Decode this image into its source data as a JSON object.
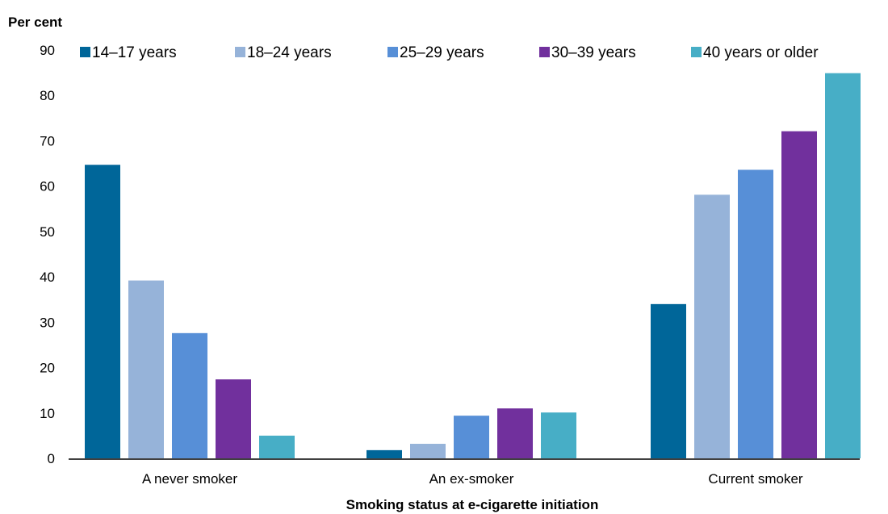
{
  "chart_data": {
    "type": "bar",
    "title": "",
    "ylabel": "Per cent",
    "xlabel": "Smoking status at e-cigarette initiation",
    "ylim": [
      0,
      90
    ],
    "y_ticks": [
      0,
      10,
      20,
      30,
      40,
      50,
      60,
      70,
      80,
      90
    ],
    "grid": false,
    "legend_position": "top",
    "categories": [
      "A never smoker",
      "An ex-smoker",
      "Current smoker"
    ],
    "series": [
      {
        "name": "14–17 years",
        "color": "#006699",
        "values": [
          64.7,
          1.8,
          34.0
        ]
      },
      {
        "name": "18–24 years",
        "color": "#96B3D9",
        "values": [
          39.2,
          3.2,
          58.1
        ]
      },
      {
        "name": "25–29 years",
        "color": "#578FD7",
        "values": [
          27.6,
          9.4,
          63.6
        ]
      },
      {
        "name": "30–39 years",
        "color": "#71309D",
        "values": [
          17.4,
          11.0,
          72.1
        ]
      },
      {
        "name": "40 years or older",
        "color": "#47AEC6",
        "values": [
          5.0,
          10.1,
          84.9
        ]
      }
    ]
  }
}
